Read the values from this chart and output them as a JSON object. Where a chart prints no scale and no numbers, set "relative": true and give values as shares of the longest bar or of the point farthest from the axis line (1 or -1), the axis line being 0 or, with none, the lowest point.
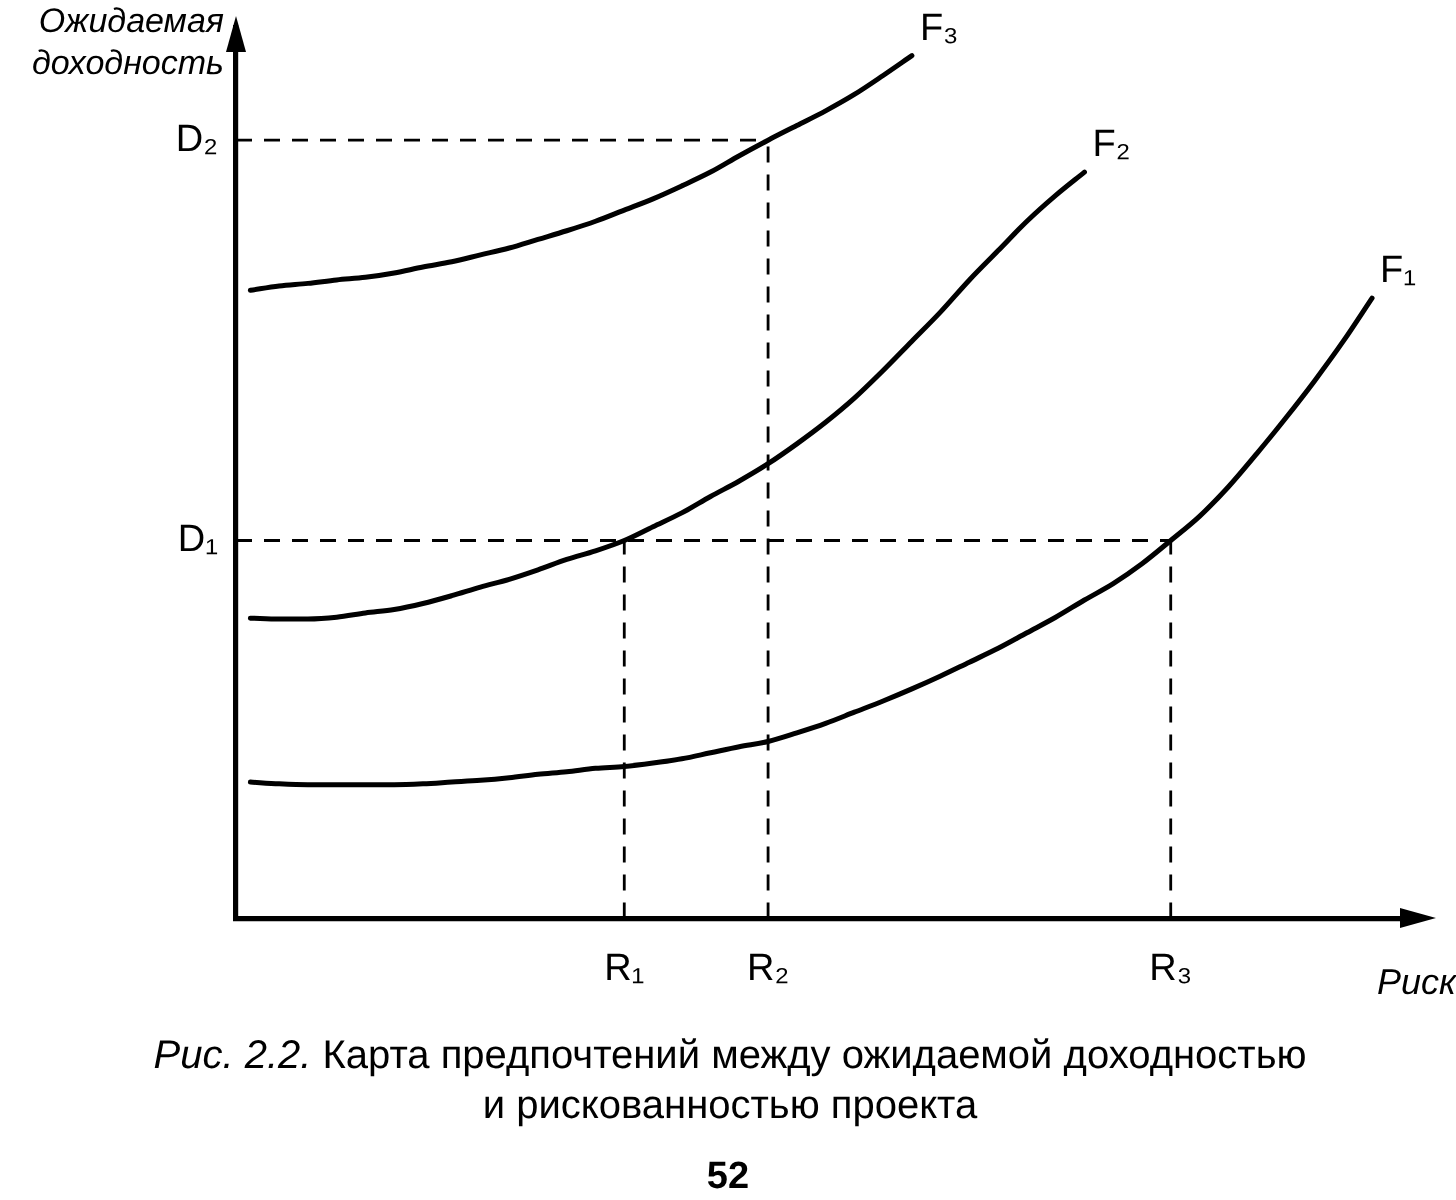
{
  "chart_data": {
    "type": "line",
    "relative": true,
    "xlabel": "Риск",
    "ylabel": "Ожидаемая доходность",
    "marker": "none",
    "grid": false,
    "legend": false,
    "tick_labels": "x",
    "categories": [
      null,
      null,
      null,
      null,
      null,
      null,
      null,
      null,
      null,
      null,
      null,
      null,
      null,
      "R₁",
      null,
      null,
      null,
      null,
      "R₂",
      null,
      null,
      null,
      null,
      null,
      null,
      null,
      null,
      null,
      null,
      null,
      null,
      null,
      "R₃",
      null,
      null,
      null,
      null,
      null,
      null,
      null,
      null
    ],
    "series": [
      {
        "name": "F₁",
        "color": "#000000",
        "values": [
          0.158,
          0.156,
          0.155,
          0.155,
          0.155,
          0.155,
          0.156,
          0.158,
          0.16,
          0.163,
          0.167,
          0.17,
          0.174,
          0.176,
          0.18,
          0.185,
          0.192,
          0.199,
          0.205,
          0.215,
          0.226,
          0.239,
          0.252,
          0.266,
          0.281,
          0.297,
          0.313,
          0.331,
          0.349,
          0.369,
          0.388,
          0.411,
          0.438,
          0.466,
          0.5,
          0.539,
          0.58,
          0.623,
          0.669,
          0.719,
          null
        ]
      },
      {
        "name": "F₂",
        "color": "#000000",
        "values": [
          0.348,
          0.347,
          0.347,
          0.349,
          0.354,
          0.358,
          0.365,
          0.374,
          0.384,
          0.393,
          0.404,
          0.416,
          0.426,
          0.438,
          0.454,
          0.47,
          0.489,
          0.507,
          0.527,
          0.55,
          0.575,
          0.603,
          0.635,
          0.669,
          0.703,
          0.74,
          0.774,
          0.808,
          0.838,
          0.865,
          null,
          null,
          null,
          null,
          null,
          null,
          null,
          null,
          null,
          null,
          null
        ]
      },
      {
        "name": "F₃",
        "color": "#000000",
        "values": [
          0.728,
          0.733,
          0.736,
          0.74,
          0.743,
          0.748,
          0.755,
          0.761,
          0.769,
          0.777,
          0.787,
          0.797,
          0.808,
          0.821,
          0.834,
          0.849,
          0.865,
          0.884,
          0.902,
          0.919,
          0.936,
          0.955,
          0.977,
          1.0,
          null,
          null,
          null,
          null,
          null,
          null,
          null,
          null,
          null,
          null,
          null,
          null,
          null,
          null,
          null,
          null,
          null
        ]
      }
    ],
    "ref_lines": [
      {
        "axis": "y",
        "value": 0.902,
        "label": "D₂",
        "color": "#000000",
        "line_style": "dashed"
      },
      {
        "axis": "y",
        "value": 0.438,
        "label": "D₁",
        "color": "#000000",
        "line_style": "dashed"
      },
      {
        "axis": "x",
        "value": "R₁",
        "color": "#000000",
        "line_style": "dashed"
      },
      {
        "axis": "x",
        "value": "R₂",
        "color": "#000000",
        "line_style": "dashed"
      },
      {
        "axis": "x",
        "value": "R₃",
        "color": "#000000",
        "line_style": "dashed"
      }
    ],
    "annotations": [
      "Рис. 2.2.",
      "Карта предпочтений между ожидаемой доходностью и рискованностью проекта",
      "52"
    ]
  }
}
